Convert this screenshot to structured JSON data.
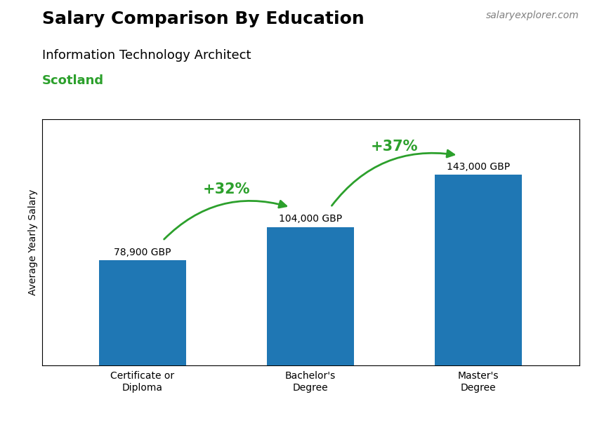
{
  "chart_data": {
    "type": "bar",
    "title": "Salary Comparison By Education",
    "subtitle": "Information Technology Architect",
    "location": "Scotland",
    "source": "salaryexplorer.com",
    "y_label": "Average Yearly Salary",
    "categories": [
      "Certificate or\nDiploma",
      "Bachelor's\nDegree",
      "Master's\nDegree"
    ],
    "values": [
      78900,
      104000,
      143000
    ],
    "value_labels": [
      "78,900 GBP",
      "104,000 GBP",
      "143,000 GBP"
    ],
    "data_labels": true,
    "annotations": [
      "+32%",
      "+37%"
    ],
    "ylim": [
      0,
      185000
    ],
    "tick_labels": "x",
    "grid": false
  }
}
